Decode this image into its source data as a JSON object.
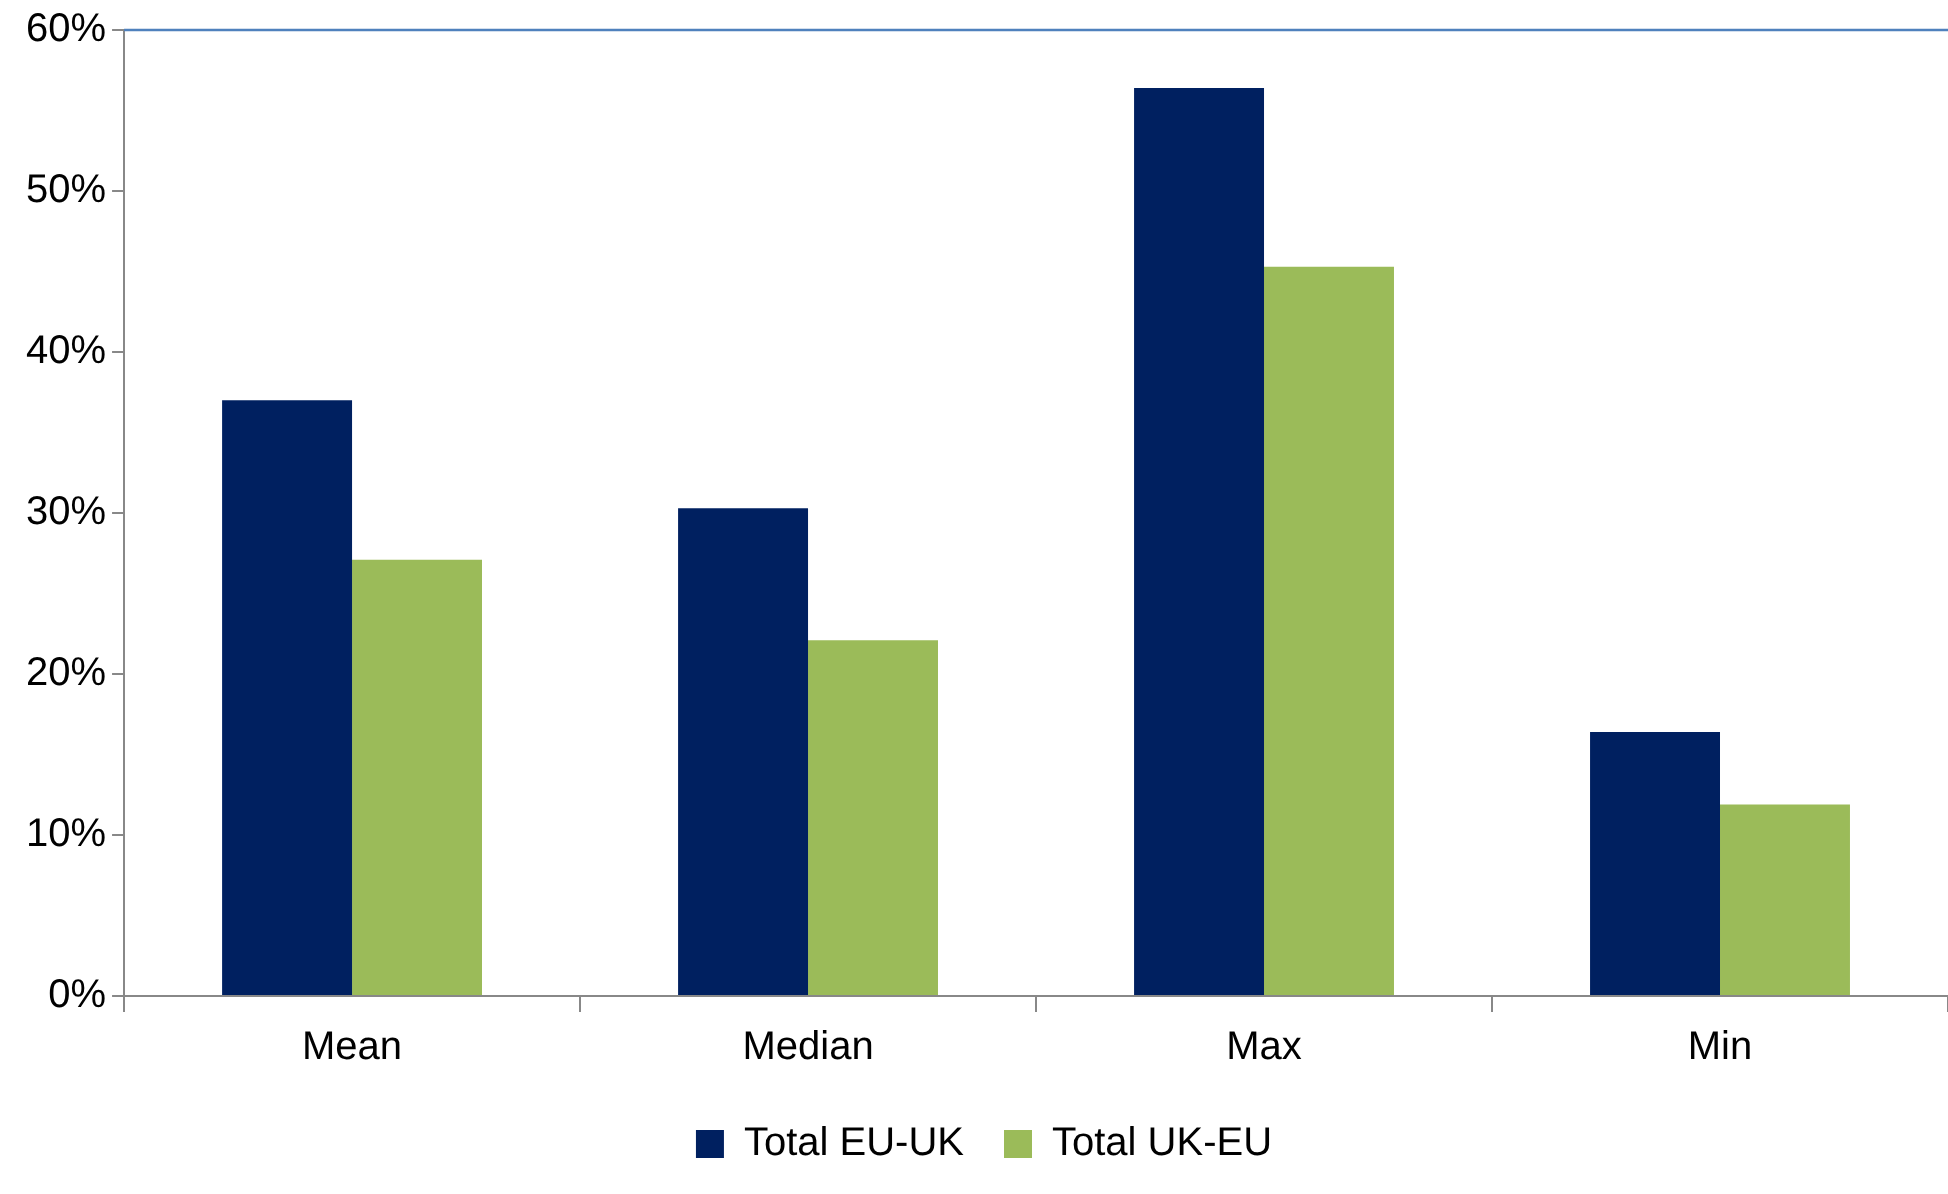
{
  "chart_data": {
    "type": "bar",
    "categories": [
      "Mean",
      "Median",
      "Max",
      "Min"
    ],
    "series": [
      {
        "name": "Total EU-UK",
        "color": "#002060",
        "values": [
          37,
          30.3,
          56.4,
          16.4
        ]
      },
      {
        "name": "Total UK-EU",
        "color": "#9bbb59",
        "values": [
          27.1,
          22.1,
          45.3,
          11.9
        ]
      }
    ],
    "ylim": [
      0,
      60
    ],
    "yticks": [
      {
        "value": 0,
        "label": "0%"
      },
      {
        "value": 10,
        "label": "10%"
      },
      {
        "value": 20,
        "label": "20%"
      },
      {
        "value": 30,
        "label": "30%"
      },
      {
        "value": 40,
        "label": "40%"
      },
      {
        "value": 50,
        "label": "50%"
      },
      {
        "value": 60,
        "label": "60%"
      }
    ],
    "grid": false,
    "legend": "bottom"
  }
}
